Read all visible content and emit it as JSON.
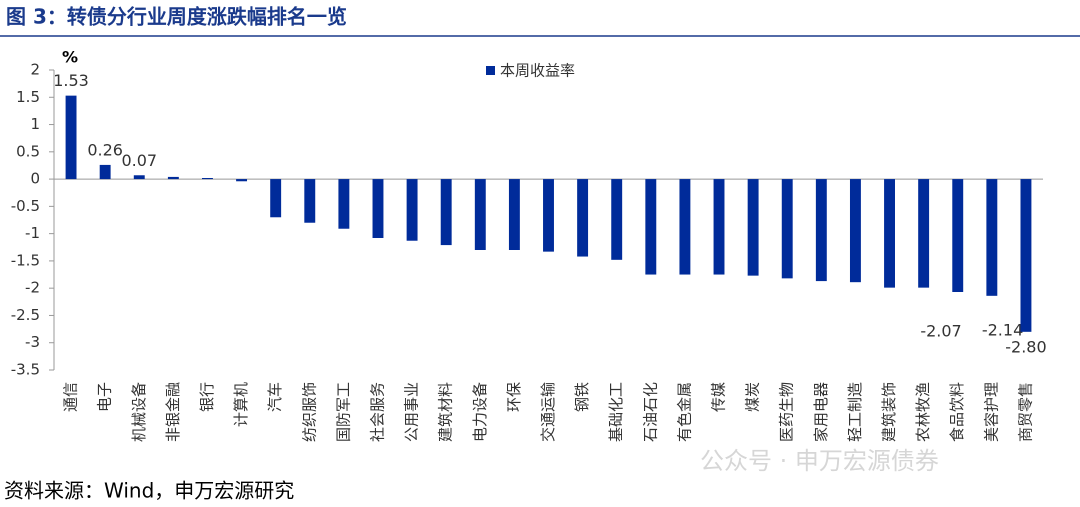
{
  "chart_data": {
    "type": "bar",
    "title": "图 3：转债分行业周度涨跌幅排名一览",
    "y_label": "%",
    "source": "资料来源：Wind，申万宏源研究",
    "watermark": "公众号 · 申万宏源债券",
    "categories": [
      "通信",
      "电子",
      "机械设备",
      "非银金融",
      "银行",
      "计算机",
      "汽车",
      "纺织服饰",
      "国防军工",
      "社会服务",
      "公用事业",
      "建筑材料",
      "电力设备",
      "环保",
      "交通运输",
      "钢铁",
      "基础化工",
      "石油石化",
      "有色金属",
      "传媒",
      "煤炭",
      "医药生物",
      "家用电器",
      "轻工制造",
      "建筑装饰",
      "农林牧渔",
      "食品饮料",
      "美容护理",
      "商贸零售"
    ],
    "series": [
      {
        "name": "本周收益率",
        "color": "#002b9a",
        "values": [
          1.53,
          0.26,
          0.07,
          0.04,
          0.02,
          -0.04,
          -0.7,
          -0.8,
          -0.91,
          -1.08,
          -1.13,
          -1.21,
          -1.3,
          -1.3,
          -1.33,
          -1.42,
          -1.48,
          -1.75,
          -1.75,
          -1.75,
          -1.77,
          -1.82,
          -1.87,
          -1.89,
          -1.99,
          -1.99,
          -2.07,
          -2.14,
          -2.8
        ],
        "value_labels": [
          "1.53",
          "0.26",
          "0.07",
          null,
          null,
          null,
          null,
          null,
          null,
          null,
          null,
          null,
          null,
          null,
          null,
          null,
          null,
          null,
          null,
          null,
          null,
          null,
          null,
          null,
          null,
          null,
          "-2.07",
          "-2.14",
          "-2.80"
        ]
      }
    ],
    "ylim": [
      -3.5,
      2
    ],
    "yticks": [
      -3.5,
      -3,
      -2.5,
      -2,
      -1.5,
      -1,
      -0.5,
      0,
      0.5,
      1,
      1.5,
      2
    ],
    "legend": "top"
  }
}
